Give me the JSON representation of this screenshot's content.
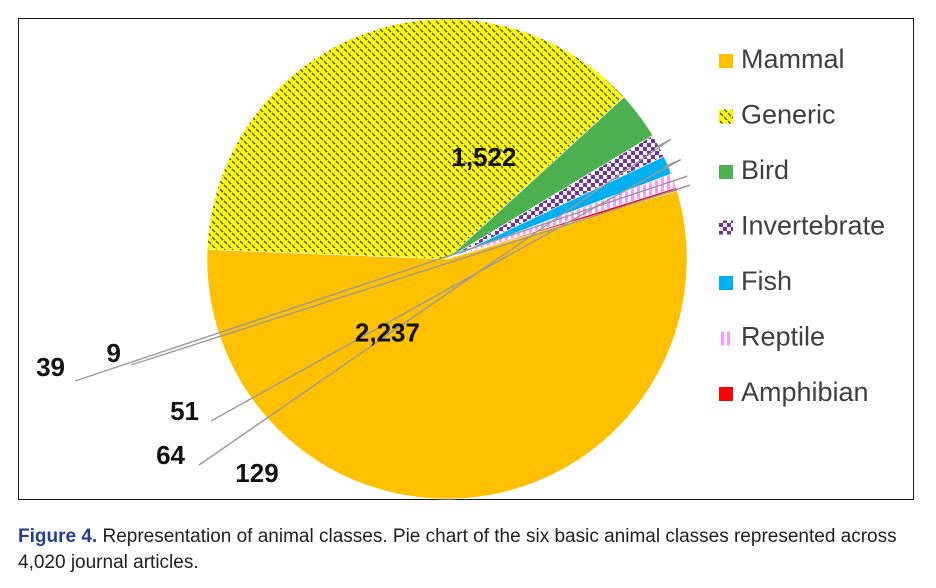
{
  "chart_data": {
    "type": "pie",
    "categories": [
      "Mammal",
      "Generic",
      "Bird",
      "Invertebrate",
      "Fish",
      "Reptile",
      "Amphibian"
    ],
    "values": [
      2237,
      1522,
      129,
      64,
      51,
      39,
      9
    ],
    "data_labels": [
      "2,237",
      "1,522",
      "129",
      "64",
      "51",
      "39",
      "9"
    ],
    "colors": {
      "Mammal": "#FFC000",
      "Generic": "#FFFF00",
      "Bird": "#4CAF50",
      "Invertebrate": "#7030A0",
      "Fish": "#00B0F0",
      "Reptile": "#FF99FF",
      "Amphibian": "#FF0000"
    },
    "patterns": {
      "Generic": "dark diagonal dashes on yellow",
      "Invertebrate": "purple checkerboard",
      "Reptile": "pink vertical stripes"
    },
    "legend": {
      "placement": "right",
      "entries": [
        "Mammal",
        "Generic",
        "Bird",
        "Invertebrate",
        "Fish",
        "Reptile",
        "Amphibian"
      ]
    }
  },
  "caption": {
    "label": "Figure 4.",
    "text": " Representation of animal classes. Pie chart of the six basic animal classes represented across 4,020 journal articles."
  }
}
